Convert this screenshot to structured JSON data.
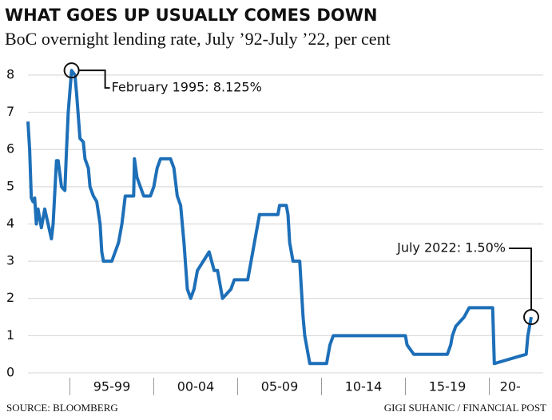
{
  "chart_data": {
    "type": "line",
    "title": "WHAT GOES UP USUALLY COMES DOWN",
    "subtitle": "BoC overnight lending rate, July ’92-July ’22, per cent",
    "source": "SOURCE: BLOOMBERG",
    "credit": "GIGI SUHANIC / FINANCIAL POST",
    "color": "#1d6fb8",
    "grid": true,
    "xlim": [
      1992.5,
      2022.5
    ],
    "xticks": [
      {
        "value": 1997.5,
        "label": "95-99"
      },
      {
        "value": 2002.5,
        "label": "00-04"
      },
      {
        "value": 2007.5,
        "label": "05-09"
      },
      {
        "value": 2012.5,
        "label": "10-14"
      },
      {
        "value": 2017.5,
        "label": "15-19"
      },
      {
        "value": 2021.25,
        "label": "20-"
      }
    ],
    "ylim": [
      0,
      8.3
    ],
    "yticks": [
      0,
      1,
      2,
      3,
      4,
      5,
      6,
      7,
      8
    ],
    "x": [
      1992.5,
      1992.6,
      1992.7,
      1992.8,
      1992.9,
      1993.0,
      1993.1,
      1993.3,
      1993.5,
      1993.7,
      1993.9,
      1994.0,
      1994.2,
      1994.3,
      1994.5,
      1994.7,
      1994.8,
      1994.9,
      1995.1,
      1995.3,
      1995.4,
      1995.6,
      1995.8,
      1995.9,
      1996.1,
      1996.2,
      1996.4,
      1996.6,
      1996.8,
      1996.9,
      1997.0,
      1997.5,
      1997.7,
      1997.9,
      1998.1,
      1998.3,
      1998.8,
      1998.85,
      1999.0,
      1999.2,
      1999.4,
      1999.8,
      2000.0,
      2000.2,
      2000.4,
      2001.0,
      2001.2,
      2001.4,
      2001.6,
      2001.8,
      2002.0,
      2002.2,
      2002.4,
      2002.6,
      2003.3,
      2003.6,
      2003.8,
      2004.0,
      2004.1,
      2004.6,
      2004.8,
      2005.6,
      2005.8,
      2006.0,
      2006.3,
      2007.4,
      2007.5,
      2007.9,
      2008.0,
      2008.1,
      2008.3,
      2008.7,
      2008.8,
      2008.9,
      2009.0,
      2009.2,
      2009.3,
      2010.3,
      2010.5,
      2010.7,
      2015.0,
      2015.1,
      2015.5,
      2017.5,
      2017.7,
      2017.8,
      2018.0,
      2018.5,
      2018.8,
      2020.2,
      2020.3,
      2022.2,
      2022.3,
      2022.5
    ],
    "values": [
      6.75,
      6.0,
      4.7,
      4.6,
      4.7,
      4.0,
      4.4,
      3.9,
      4.4,
      4.0,
      3.6,
      4.0,
      5.7,
      5.7,
      5.0,
      4.9,
      6.0,
      7.0,
      8.125,
      8.0,
      7.5,
      6.3,
      6.2,
      5.75,
      5.5,
      5.0,
      4.75,
      4.6,
      4.0,
      3.25,
      3.0,
      3.0,
      3.25,
      3.5,
      4.0,
      4.75,
      4.75,
      5.75,
      5.25,
      5.0,
      4.75,
      4.75,
      5.0,
      5.5,
      5.75,
      5.75,
      5.5,
      4.75,
      4.5,
      3.5,
      2.25,
      2.0,
      2.25,
      2.75,
      3.25,
      2.75,
      2.75,
      2.25,
      2.0,
      2.25,
      2.5,
      2.5,
      3.0,
      3.5,
      4.25,
      4.25,
      4.5,
      4.5,
      4.25,
      3.5,
      3.0,
      3.0,
      2.25,
      1.5,
      1.0,
      0.5,
      0.25,
      0.25,
      0.75,
      1.0,
      1.0,
      0.75,
      0.5,
      0.5,
      0.75,
      1.0,
      1.25,
      1.5,
      1.75,
      1.75,
      0.25,
      0.5,
      1.0,
      1.5
    ],
    "annotations": [
      {
        "text": "February 1995: 8.125%",
        "x": 1995.1,
        "y": 8.125
      },
      {
        "text": "July 2022: 1.50%",
        "x": 2022.5,
        "y": 1.5
      }
    ]
  }
}
